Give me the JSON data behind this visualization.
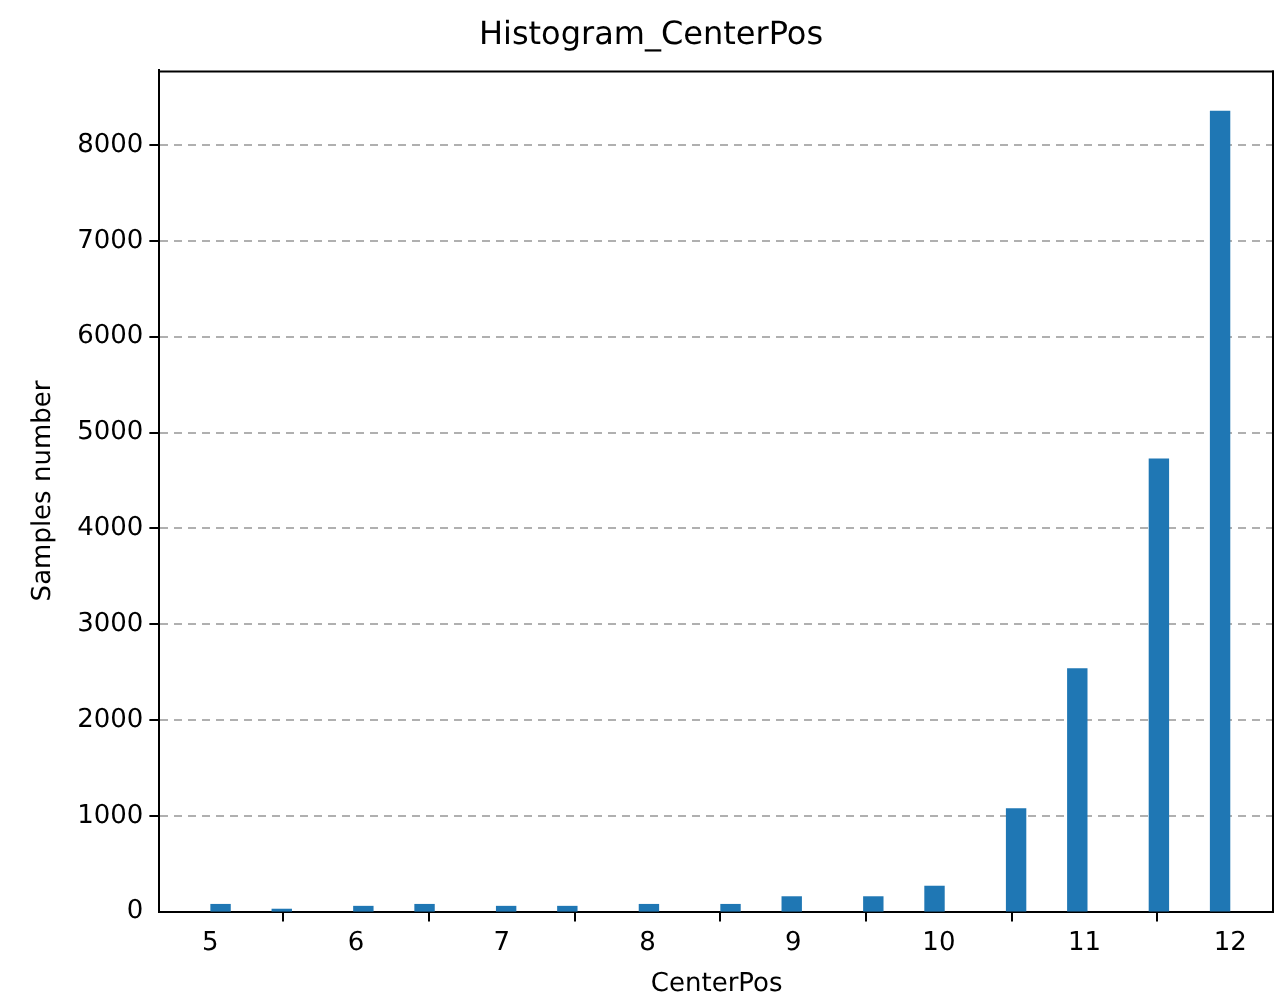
{
  "chart_data": {
    "type": "histogram",
    "title": "Histogram_CenterPos",
    "xlabel": "CenterPos",
    "ylabel": "Samples number",
    "bins": [
      5,
      5.14,
      5.42,
      5.56,
      5.98,
      6.12,
      6.4,
      6.54,
      6.96,
      7.1,
      7.38,
      7.52,
      7.94,
      8.08,
      8.5,
      8.64,
      8.92,
      9.06,
      9.48,
      9.62,
      9.9,
      10.04,
      10.46,
      10.6,
      10.88,
      11.02,
      11.44,
      11.58,
      11.86,
      12
    ],
    "values": [
      80,
      0,
      30,
      0,
      60,
      0,
      80,
      0,
      60,
      0,
      60,
      0,
      80,
      0,
      80,
      0,
      160,
      0,
      160,
      0,
      270,
      0,
      1080,
      0,
      2540,
      0,
      4730,
      0,
      8360
    ],
    "color": "#1f77b4",
    "xlim": [
      4.65,
      12.3
    ],
    "ylim": [
      0,
      8780
    ],
    "xticks": [
      5,
      6,
      7,
      8,
      9,
      10,
      11,
      12
    ],
    "yticks": [
      0,
      1000,
      2000,
      3000,
      4000,
      5000,
      6000,
      7000,
      8000
    ],
    "grid": "y"
  }
}
